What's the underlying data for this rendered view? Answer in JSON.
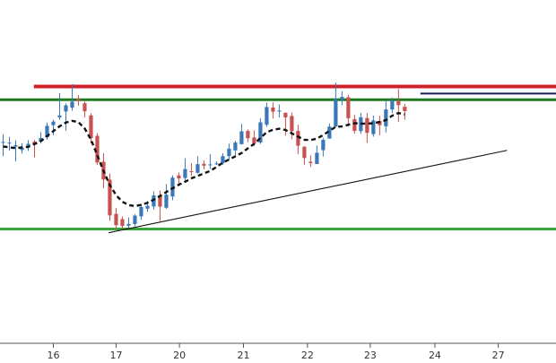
{
  "chart_data": {
    "type": "candlestick",
    "title": "",
    "xlabel": "",
    "ylabel": "",
    "x_ticks": [
      {
        "label": "16",
        "idx": 8.5
      },
      {
        "label": "17",
        "idx": 18.5
      },
      {
        "label": "20",
        "idx": 28.6
      },
      {
        "label": "21",
        "idx": 38.8
      },
      {
        "label": "22",
        "idx": 49
      },
      {
        "label": "23",
        "idx": 59
      },
      {
        "label": "24",
        "idx": 69.3
      },
      {
        "label": "27",
        "idx": 79.4
      }
    ],
    "x_range": [
      0,
      88.6
    ],
    "y_range": [
      0,
      100
    ],
    "grid": false,
    "colors": {
      "up": "#3a78b8",
      "down": "#c8524f",
      "resistance": "#d0202a",
      "top_band": "#1f7a1f",
      "support": "#3aa63a",
      "trendline": "#111111",
      "moving_average": "#111111",
      "recent_high": "#1a1a5a"
    },
    "candles": [
      [
        75.2,
        75.6,
        79.8,
        68.0
      ],
      [
        74.8,
        75.2,
        78.3,
        71.0
      ],
      [
        73.1,
        73.9,
        76.4,
        65.3
      ],
      [
        71.3,
        72.5,
        74.9,
        69.4
      ],
      [
        73.6,
        74.6,
        76.5,
        70.8
      ],
      [
        75.8,
        74.2,
        76.6,
        67.4
      ],
      [
        75.8,
        77.7,
        80.9,
        74.9
      ],
      [
        78.1,
        84.2,
        86.0,
        76.8
      ],
      [
        84.6,
        86.5,
        87.5,
        79.2
      ],
      [
        88.8,
        89.8,
        101.7,
        87.5
      ],
      [
        91.9,
        95.2,
        96.2,
        81.6
      ],
      [
        94.0,
        97.2,
        106.5,
        92.3
      ],
      [
        98.5,
        97.4,
        100.7,
        95.0
      ],
      [
        96.3,
        92.0,
        97.4,
        88.7
      ],
      [
        89.8,
        77.6,
        91.0,
        74.8
      ],
      [
        78.9,
        64.6,
        80.4,
        63.4
      ],
      [
        65.0,
        55.5,
        69.5,
        50.9
      ],
      [
        55.4,
        36.3,
        58.7,
        33.4
      ],
      [
        37.1,
        31.1,
        40.2,
        29.0
      ],
      [
        34.3,
        30.7,
        35.7,
        29.3
      ],
      [
        30.8,
        31.7,
        35.2,
        29.5
      ],
      [
        31.7,
        36.2,
        36.9,
        30.4
      ],
      [
        35.8,
        40.8,
        42.5,
        33.9
      ],
      [
        39.9,
        41.4,
        44.1,
        38.2
      ],
      [
        41.1,
        47.0,
        49.2,
        39.4
      ],
      [
        47.2,
        41.0,
        49.6,
        33.2
      ],
      [
        40.4,
        47.4,
        53.1,
        39.8
      ],
      [
        46.4,
        56.5,
        57.8,
        44.4
      ],
      [
        57.7,
        56.1,
        59.3,
        53.5
      ],
      [
        56.3,
        61.1,
        66.8,
        54.6
      ],
      [
        60.0,
        59.5,
        64.3,
        57.4
      ],
      [
        59.1,
        63.7,
        67.9,
        58.6
      ],
      [
        63.9,
        62.9,
        65.8,
        60.9
      ],
      [
        63.2,
        63.6,
        69.1,
        61.2
      ],
      [
        63.9,
        64.1,
        65.2,
        63.3
      ],
      [
        64.2,
        68.0,
        69.6,
        63.4
      ],
      [
        68.0,
        72.0,
        74.7,
        66.1
      ],
      [
        71.1,
        75.3,
        76.2,
        68.4
      ],
      [
        74.4,
        81.3,
        85.2,
        74.3
      ],
      [
        81.5,
        77.6,
        82.3,
        75.5
      ],
      [
        78.0,
        74.9,
        81.9,
        73.4
      ],
      [
        75.3,
        86.1,
        88.2,
        74.5
      ],
      [
        84.8,
        94.3,
        96.7,
        83.7
      ],
      [
        94.0,
        91.8,
        96.8,
        88.1
      ],
      [
        92.0,
        92.4,
        95.7,
        88.7
      ],
      [
        91.2,
        88.7,
        91.4,
        79.0
      ],
      [
        89.5,
        81.3,
        91.4,
        77.1
      ],
      [
        81.5,
        73.6,
        84.8,
        69.1
      ],
      [
        73.0,
        67.0,
        73.4,
        63.4
      ],
      [
        65.0,
        64.3,
        68.5,
        62.2
      ],
      [
        63.8,
        69.8,
        73.7,
        63.8
      ],
      [
        71.2,
        76.7,
        77.8,
        67.8
      ],
      [
        77.4,
        83.8,
        85.5,
        77.5
      ],
      [
        83.9,
        98.5,
        107.3,
        83.5
      ],
      [
        98.1,
        99.7,
        102.8,
        95.3
      ],
      [
        99.5,
        88.3,
        100.9,
        83.8
      ],
      [
        87.8,
        81.5,
        90.1,
        80.1
      ],
      [
        81.4,
        88.8,
        91.2,
        80.0
      ],
      [
        88.4,
        80.5,
        91.1,
        75.1
      ],
      [
        79.8,
        87.1,
        89.7,
        78.4
      ],
      [
        86.8,
        84.6,
        89.6,
        79.1
      ],
      [
        84.0,
        93.0,
        97.4,
        80.7
      ],
      [
        93.0,
        97.8,
        99.3,
        91.1
      ],
      [
        97.5,
        95.3,
        103.9,
        86.4
      ],
      [
        94.4,
        92.1,
        96.0,
        87.4
      ]
    ],
    "moving_average": [
      [
        0,
        73.2
      ],
      [
        2,
        72.3
      ],
      [
        4,
        73.0
      ],
      [
        6,
        76.0
      ],
      [
        8,
        81.4
      ],
      [
        9,
        84.0
      ],
      [
        10,
        86.0
      ],
      [
        11,
        86.9
      ],
      [
        12,
        86.2
      ],
      [
        13,
        82.8
      ],
      [
        14,
        76.8
      ],
      [
        15,
        68.5
      ],
      [
        16,
        60.0
      ],
      [
        17,
        52.5
      ],
      [
        18,
        47.1
      ],
      [
        19,
        43.6
      ],
      [
        20,
        41.8
      ],
      [
        21,
        41.3
      ],
      [
        22,
        41.9
      ],
      [
        23,
        43.0
      ],
      [
        24,
        44.7
      ],
      [
        25,
        46.6
      ],
      [
        26,
        48.8
      ],
      [
        27,
        50.8
      ],
      [
        28,
        52.7
      ],
      [
        29,
        54.3
      ],
      [
        30,
        56.1
      ],
      [
        31,
        57.4
      ],
      [
        32,
        58.8
      ],
      [
        33,
        60.1
      ],
      [
        34,
        62.2
      ],
      [
        35,
        64.5
      ],
      [
        36,
        66.2
      ],
      [
        37,
        67.9
      ],
      [
        38,
        69.7
      ],
      [
        39,
        72.2
      ],
      [
        40,
        74.6
      ],
      [
        41,
        77.7
      ],
      [
        42,
        80.8
      ],
      [
        43,
        82.1
      ],
      [
        44,
        82.7
      ],
      [
        45,
        82.0
      ],
      [
        46,
        80.2
      ],
      [
        47,
        78.4
      ],
      [
        48,
        76.8
      ],
      [
        49,
        76.6
      ],
      [
        50,
        77.4
      ],
      [
        51,
        79.3
      ],
      [
        52,
        81.6
      ],
      [
        53,
        83.7
      ],
      [
        54,
        83.9
      ],
      [
        55,
        84.8
      ],
      [
        56,
        85.6
      ],
      [
        57,
        85.4
      ],
      [
        58,
        85.4
      ],
      [
        59,
        85.6
      ],
      [
        60,
        86.3
      ],
      [
        61,
        87.3
      ],
      [
        62,
        89.7
      ],
      [
        63,
        91.1
      ],
      [
        64,
        90.3
      ]
    ],
    "horizontal_lines": [
      {
        "name": "resistance",
        "y": 105.3,
        "x_start": 5.4,
        "x_end": 88.6
      },
      {
        "name": "top_band",
        "y": 98.2,
        "x_start": 0,
        "x_end": 88.6
      },
      {
        "name": "support",
        "y": 29.0,
        "x_start": 0,
        "x_end": 88.6
      },
      {
        "name": "recent_high",
        "y": 101.5,
        "x_start": 67.0,
        "x_end": 88.6
      }
    ],
    "trendline": {
      "from": [
        17.3,
        27.0
      ],
      "to": [
        80.8,
        71.1
      ]
    }
  }
}
